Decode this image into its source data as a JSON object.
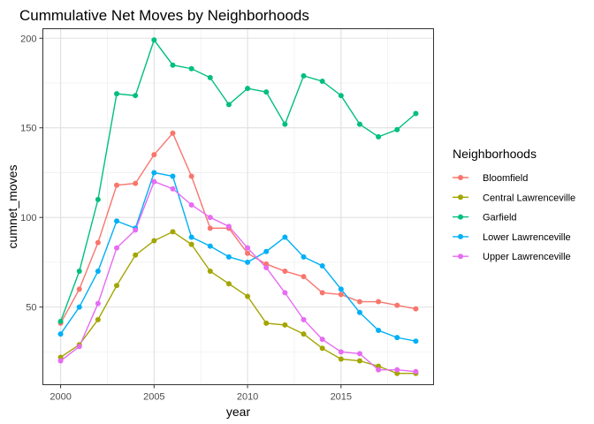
{
  "chart_data": {
    "type": "line",
    "title": "Cummulative Net Moves by Neighborhoods",
    "xlabel": "year",
    "ylabel": "cumnet_moves",
    "xlim": [
      1999.05,
      2019.95
    ],
    "ylim": [
      6.7,
      205.3
    ],
    "x_ticks": [
      2000,
      2005,
      2010,
      2015
    ],
    "y_ticks": [
      50,
      100,
      150,
      200
    ],
    "grid": true,
    "legend": {
      "title": "Neighborhoods",
      "position": "right"
    },
    "x": [
      2000,
      2001,
      2002,
      2003,
      2004,
      2005,
      2006,
      2007,
      2008,
      2009,
      2010,
      2011,
      2012,
      2013,
      2014,
      2015,
      2016,
      2017,
      2018,
      2019
    ],
    "series": [
      {
        "name": "Bloomfield",
        "color": "#F8766D",
        "values": [
          41,
          60,
          86,
          118,
          119,
          135,
          147,
          123,
          94,
          94,
          80,
          74,
          70,
          67,
          58,
          57,
          53,
          53,
          51,
          49
        ]
      },
      {
        "name": "Central Lawrenceville",
        "color": "#A3A500",
        "values": [
          22,
          29,
          43,
          62,
          79,
          87,
          92,
          85,
          70,
          63,
          56,
          41,
          40,
          35,
          27,
          21,
          20,
          17,
          13,
          13
        ]
      },
      {
        "name": "Garfield",
        "color": "#00BF7D",
        "values": [
          42,
          70,
          110,
          169,
          168,
          199,
          185,
          183,
          178,
          163,
          172,
          170,
          152,
          179,
          176,
          168,
          152,
          145,
          149,
          158
        ]
      },
      {
        "name": "Lower Lawrenceville",
        "color": "#00B0F6",
        "values": [
          35,
          50,
          70,
          98,
          94,
          125,
          123,
          89,
          84,
          78,
          75,
          81,
          89,
          78,
          73,
          60,
          47,
          37,
          33,
          31
        ]
      },
      {
        "name": "Upper Lawrenceville",
        "color": "#E76BF3",
        "values": [
          20,
          28,
          52,
          83,
          93,
          120,
          116,
          107,
          100,
          95,
          83,
          72,
          58,
          43,
          32,
          25,
          24,
          15,
          15,
          14
        ]
      }
    ]
  }
}
